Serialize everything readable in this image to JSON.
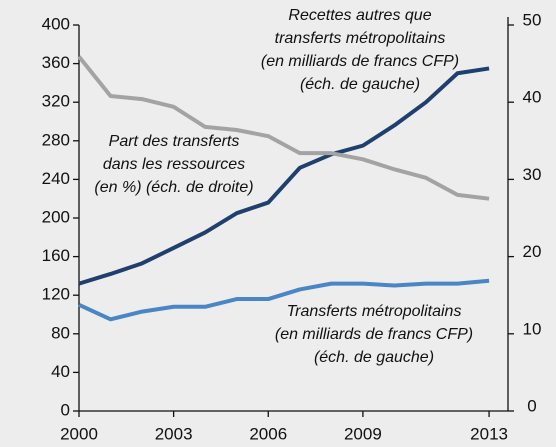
{
  "chart_data": {
    "type": "line",
    "x": [
      2000,
      2001,
      2002,
      2003,
      2004,
      2005,
      2006,
      2007,
      2008,
      2009,
      2010,
      2011,
      2012,
      2013
    ],
    "xlim": [
      2000,
      2013.6
    ],
    "xticks": [
      2000,
      2003,
      2006,
      2009,
      2013
    ],
    "ylim": [
      0,
      400
    ],
    "yticks": [
      0,
      40,
      80,
      120,
      160,
      200,
      240,
      280,
      320,
      360,
      400
    ],
    "y2lim": [
      0,
      50
    ],
    "y2ticks": [
      0,
      10,
      20,
      30,
      40,
      50
    ],
    "series": [
      {
        "name": [
          "Recettes autres que",
          "transferts métropolitains",
          "(en milliards de francs CFP)",
          "(éch. de gauche)"
        ],
        "color": "#1f3f6e",
        "axis": "y",
        "values": [
          132,
          142,
          153,
          169,
          185,
          205,
          216,
          252,
          266,
          275,
          296,
          320,
          350,
          355
        ]
      },
      {
        "name": [
          "Transferts métropolitains",
          "(en milliards de francs CFP)",
          "(éch. de gauche)"
        ],
        "color": "#4a86c5",
        "axis": "y",
        "values": [
          110,
          95,
          103,
          108,
          108,
          116,
          116,
          126,
          132,
          132,
          130,
          132,
          132,
          135
        ]
      },
      {
        "name": [
          "Part des transferts",
          "dans les ressources",
          "(en %) (éch. de droite)"
        ],
        "color": "#a3a3a3",
        "axis": "y2",
        "values": [
          45.9,
          40.8,
          40.4,
          39.4,
          36.8,
          36.4,
          35.6,
          33.4,
          33.4,
          32.6,
          31.3,
          30.2,
          28,
          27.5
        ]
      }
    ]
  }
}
